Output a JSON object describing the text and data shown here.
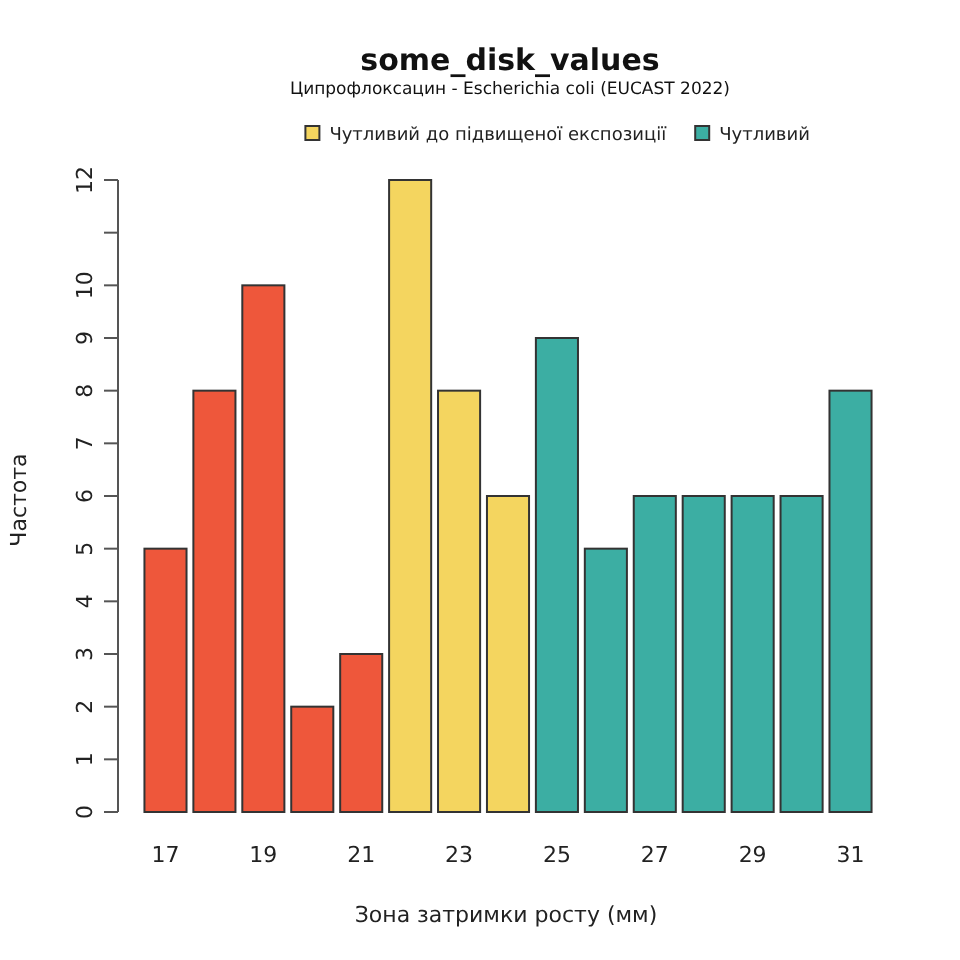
{
  "chart_data": {
    "type": "bar",
    "title": "some_disk_values",
    "subtitle": "Ципрофлоксацин - Escherichia coli (EUCAST 2022)",
    "xlabel": "Зона затримки росту (мм)",
    "ylabel": "Частота",
    "categories": [
      "17",
      null,
      "19",
      null,
      "21",
      null,
      "23",
      null,
      "25",
      null,
      "27",
      null,
      "29",
      null,
      "31"
    ],
    "series": [
      {
        "color": "#ee573b",
        "values": [
          5,
          8,
          10,
          2,
          3,
          null,
          null,
          null,
          null,
          null,
          null,
          null,
          null,
          null,
          null
        ]
      },
      {
        "name": "Чутливий до підвищеної експозиції",
        "color": "#f4d55f",
        "values": [
          null,
          null,
          null,
          null,
          null,
          12,
          8,
          6,
          null,
          null,
          null,
          null,
          null,
          null,
          null
        ]
      },
      {
        "name": "Чутливий",
        "color": "#3caea3",
        "values": [
          null,
          null,
          null,
          null,
          null,
          null,
          null,
          null,
          9,
          5,
          6,
          6,
          6,
          6,
          8
        ]
      }
    ],
    "stacked": true,
    "ylim": [
      0,
      12
    ],
    "yticks": [
      0,
      1,
      2,
      3,
      4,
      5,
      6,
      7,
      8,
      9,
      10,
      {
        "value": 11,
        "label": null
      },
      12
    ],
    "legend": "top right",
    "grid": false
  }
}
